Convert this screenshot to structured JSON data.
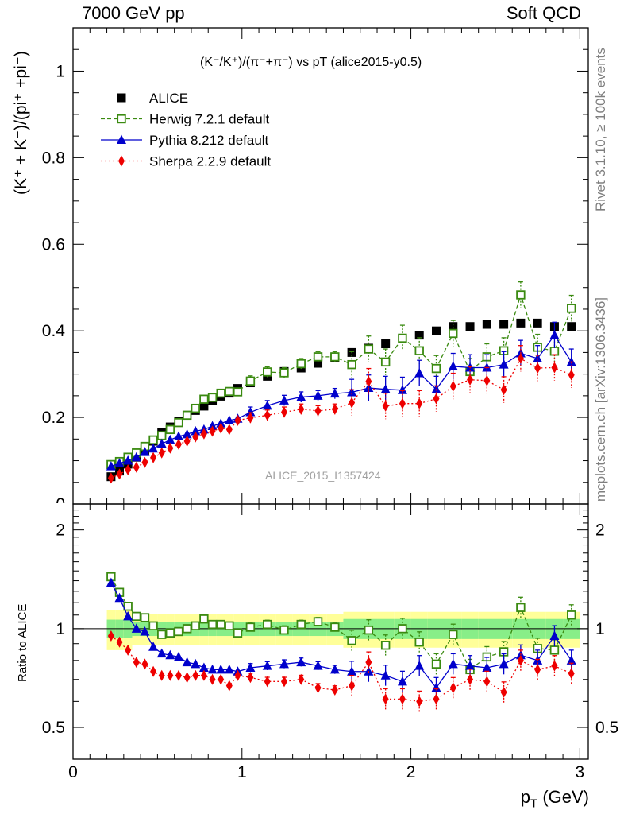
{
  "header": {
    "left": "7000 GeV pp",
    "right": "Soft QCD"
  },
  "side": {
    "rivet": "Rivet 3.1.10, ≥ 100k events",
    "mcplots": "mcplots.cern.ch [arXiv:1306.3436]"
  },
  "labels": {
    "plot_title": "(K⁻/K⁺)/(π⁻+π⁻) vs pT (alice2015-y0.5)",
    "ylabel_top": "(K⁺ + K⁻)/(pi⁺ +pi⁻)",
    "ylabel_ratio": "Ratio to ALICE",
    "xlabel": "p",
    "xlabel_sub": "T",
    "xlabel_unit": " (GeV)",
    "analysis": "ALICE_2015_I1357424"
  },
  "legend": {
    "alice": "ALICE",
    "herwig": "Herwig 7.2.1 default",
    "pythia": "Pythia 8.212 default",
    "sherpa": "Sherpa 2.2.9 default"
  },
  "colors": {
    "alice": "#000000",
    "herwig": "#3a8a10",
    "pythia": "#0000cc",
    "sherpa": "#ee0000",
    "band_inner": "#88ee88",
    "band_outer": "#ffff99"
  },
  "chart_data": [
    {
      "type": "scatter",
      "panel": "main",
      "xlim": [
        0,
        3.05
      ],
      "ylim": [
        0,
        1.1
      ],
      "x_ticks": [
        "0",
        "1",
        "2",
        "3"
      ],
      "y_ticks": [
        "0.2",
        "0.4",
        "0.6",
        "0.8",
        "1"
      ],
      "x": [
        0.225,
        0.275,
        0.325,
        0.375,
        0.425,
        0.475,
        0.525,
        0.575,
        0.625,
        0.675,
        0.725,
        0.775,
        0.825,
        0.875,
        0.925,
        0.975,
        1.05,
        1.15,
        1.25,
        1.35,
        1.45,
        1.55,
        1.65,
        1.75,
        1.85,
        1.95,
        2.05,
        2.15,
        2.25,
        2.35,
        2.45,
        2.55,
        2.65,
        2.75,
        2.85,
        2.95
      ],
      "series": [
        {
          "name": "ALICE",
          "values": [
            0.063,
            0.076,
            0.092,
            0.108,
            0.123,
            0.145,
            0.165,
            0.178,
            0.191,
            0.205,
            0.216,
            0.226,
            0.239,
            0.249,
            0.256,
            0.267,
            0.28,
            0.295,
            0.306,
            0.314,
            0.325,
            0.338,
            0.35,
            0.36,
            0.37,
            0.382,
            0.39,
            0.4,
            0.41,
            0.41,
            0.415,
            0.415,
            0.418,
            0.418,
            0.41,
            0.41
          ]
        },
        {
          "name": "Herwig 7.2.1 default",
          "values": [
            0.091,
            0.098,
            0.108,
            0.118,
            0.133,
            0.148,
            0.158,
            0.172,
            0.188,
            0.205,
            0.221,
            0.242,
            0.246,
            0.256,
            0.26,
            0.259,
            0.284,
            0.305,
            0.303,
            0.324,
            0.34,
            0.34,
            0.322,
            0.358,
            0.328,
            0.383,
            0.354,
            0.313,
            0.394,
            0.306,
            0.34,
            0.354,
            0.483,
            0.362,
            0.353,
            0.452
          ]
        },
        {
          "name": "Pythia 8.212 default",
          "values": [
            0.087,
            0.094,
            0.1,
            0.108,
            0.12,
            0.128,
            0.139,
            0.148,
            0.156,
            0.161,
            0.168,
            0.172,
            0.18,
            0.186,
            0.193,
            0.197,
            0.212,
            0.227,
            0.239,
            0.247,
            0.25,
            0.255,
            0.258,
            0.268,
            0.265,
            0.263,
            0.302,
            0.265,
            0.318,
            0.315,
            0.315,
            0.322,
            0.348,
            0.336,
            0.39,
            0.328
          ]
        },
        {
          "name": "Sherpa 2.2.9 default",
          "values": [
            0.06,
            0.069,
            0.079,
            0.085,
            0.096,
            0.107,
            0.118,
            0.129,
            0.138,
            0.145,
            0.155,
            0.162,
            0.168,
            0.175,
            0.172,
            0.193,
            0.199,
            0.205,
            0.212,
            0.219,
            0.215,
            0.219,
            0.234,
            0.283,
            0.226,
            0.232,
            0.232,
            0.243,
            0.272,
            0.287,
            0.285,
            0.264,
            0.336,
            0.314,
            0.315,
            0.298
          ]
        }
      ]
    },
    {
      "type": "scatter",
      "panel": "ratio",
      "ylabel": "Ratio to ALICE",
      "xlim": [
        0,
        3.05
      ],
      "ylim": [
        0.4,
        2.4
      ],
      "y_scale": "log",
      "y_ticks": [
        "0.5",
        "1",
        "2"
      ],
      "x": [
        0.225,
        0.275,
        0.325,
        0.375,
        0.425,
        0.475,
        0.525,
        0.575,
        0.625,
        0.675,
        0.725,
        0.775,
        0.825,
        0.875,
        0.925,
        0.975,
        1.05,
        1.15,
        1.25,
        1.35,
        1.45,
        1.55,
        1.65,
        1.75,
        1.85,
        1.95,
        2.05,
        2.15,
        2.25,
        2.35,
        2.45,
        2.55,
        2.65,
        2.75,
        2.85,
        2.95
      ],
      "series": [
        {
          "name": "Herwig 7.2.1 default",
          "values": [
            1.44,
            1.29,
            1.17,
            1.09,
            1.08,
            1.02,
            0.96,
            0.97,
            0.98,
            1.0,
            1.02,
            1.07,
            1.03,
            1.03,
            1.02,
            0.97,
            1.01,
            1.03,
            0.99,
            1.03,
            1.05,
            1.01,
            0.92,
            0.99,
            0.89,
            1.0,
            0.91,
            0.78,
            0.96,
            0.75,
            0.82,
            0.85,
            1.16,
            0.87,
            0.86,
            1.1
          ]
        },
        {
          "name": "Pythia 8.212 default",
          "values": [
            1.38,
            1.24,
            1.09,
            1.0,
            0.98,
            0.88,
            0.84,
            0.83,
            0.82,
            0.79,
            0.78,
            0.76,
            0.75,
            0.75,
            0.75,
            0.74,
            0.76,
            0.77,
            0.78,
            0.79,
            0.77,
            0.75,
            0.74,
            0.74,
            0.72,
            0.69,
            0.77,
            0.66,
            0.78,
            0.77,
            0.76,
            0.78,
            0.83,
            0.8,
            0.95,
            0.8
          ]
        },
        {
          "name": "Sherpa 2.2.9 default",
          "values": [
            0.95,
            0.91,
            0.86,
            0.79,
            0.78,
            0.74,
            0.72,
            0.72,
            0.72,
            0.71,
            0.72,
            0.72,
            0.7,
            0.7,
            0.67,
            0.72,
            0.71,
            0.69,
            0.69,
            0.7,
            0.66,
            0.65,
            0.67,
            0.79,
            0.61,
            0.61,
            0.6,
            0.61,
            0.66,
            0.7,
            0.69,
            0.64,
            0.8,
            0.75,
            0.77,
            0.73
          ]
        }
      ]
    }
  ]
}
